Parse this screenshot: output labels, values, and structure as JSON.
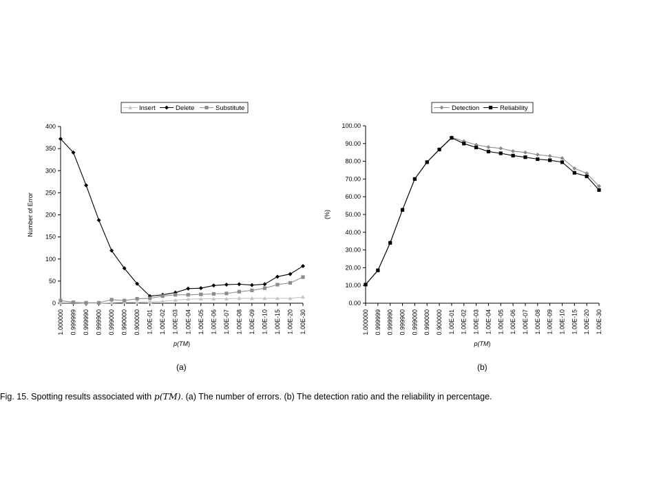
{
  "chart_data": [
    {
      "type": "line",
      "categories": [
        "1.000000",
        "0.999999",
        "0.999990",
        "0.999900",
        "0.999000",
        "0.990000",
        "0.900000",
        "1.00E-01",
        "1.00E-02",
        "1.00E-03",
        "1.00E-04",
        "1.00E-05",
        "1.00E-06",
        "1.00E-07",
        "1.00E-08",
        "1.00E-09",
        "1.00E-10",
        "1.00E-15",
        "1.00E-20",
        "1.00E-30"
      ],
      "ylabel": "Number of Error",
      "xlabel": "p(TM)",
      "ylim": [
        0,
        400
      ],
      "yticks": [
        "0",
        "50",
        "100",
        "150",
        "200",
        "250",
        "300",
        "350",
        "400"
      ],
      "legend_position": "top",
      "grid": false,
      "series": [
        {
          "name": "Insert",
          "color": "#c4c4c4",
          "marker": "triangle",
          "values": [
            1,
            1,
            0,
            0,
            1,
            2,
            2,
            3,
            4,
            7,
            9,
            10,
            10,
            10,
            11,
            11,
            11,
            11,
            11,
            14
          ]
        },
        {
          "name": "Delete",
          "color": "#000000",
          "marker": "diamond",
          "values": [
            372,
            341,
            267,
            188,
            119,
            79,
            44,
            16,
            19,
            24,
            33,
            34,
            40,
            42,
            43,
            41,
            43,
            60,
            66,
            84
          ]
        },
        {
          "name": "Substitute",
          "color": "#8c8c8c",
          "marker": "square",
          "values": [
            6,
            2,
            1,
            1,
            8,
            6,
            10,
            11,
            16,
            19,
            19,
            20,
            21,
            22,
            26,
            29,
            34,
            42,
            46,
            59
          ]
        }
      ],
      "panel_label": "(a)"
    },
    {
      "type": "line",
      "categories": [
        "1.000000",
        "0.999999",
        "0.999990",
        "0.999900",
        "0.999000",
        "0.990000",
        "0.900000",
        "1.00E-01",
        "1.00E-02",
        "1.00E-03",
        "1.00E-04",
        "1.00E-05",
        "1.00E-06",
        "1.00E-07",
        "1.00E-08",
        "1.00E-09",
        "1.00E-10",
        "1.00E-15",
        "1.00E-20",
        "1.00E-30"
      ],
      "ylabel": "(%)",
      "xlabel": "p(TM)",
      "ylim": [
        0,
        100
      ],
      "yticks": [
        "0.00",
        "10.00",
        "20.00",
        "30.00",
        "40.00",
        "50.00",
        "60.00",
        "70.00",
        "80.00",
        "90.00",
        "100.00"
      ],
      "legend_position": "top",
      "grid": false,
      "series": [
        {
          "name": "Detection",
          "color": "#8c8c8c",
          "marker": "diamond",
          "values": [
            10.5,
            18.5,
            34.2,
            52.8,
            70.1,
            79.6,
            86.8,
            93.5,
            91.3,
            89.3,
            88.0,
            87.3,
            85.7,
            85.0,
            83.7,
            83.0,
            81.8,
            76.0,
            73.2,
            66.0
          ]
        },
        {
          "name": "Reliability",
          "color": "#000000",
          "marker": "square",
          "values": [
            10.5,
            18.5,
            34.0,
            52.6,
            70.0,
            79.5,
            86.6,
            93.2,
            90.0,
            87.8,
            85.5,
            84.5,
            83.2,
            82.3,
            81.2,
            80.6,
            79.5,
            73.5,
            71.5,
            63.8
          ]
        }
      ],
      "panel_label": "(b)"
    }
  ],
  "caption": {
    "prefix": "Fig. 15. Spotting results associated with ",
    "math": "p(TM)",
    "suffix": ". (a) The number of errors. (b) The detection ratio and the reliability in percentage."
  }
}
